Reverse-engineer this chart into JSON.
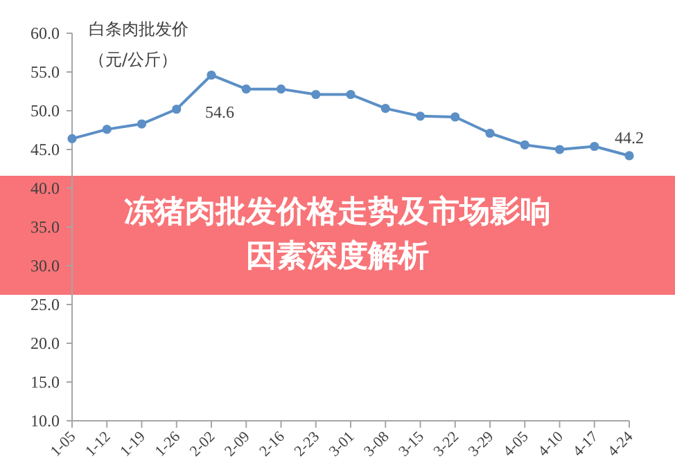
{
  "chart_data": {
    "type": "line",
    "ylabel": "白条肉批发价（元/公斤）",
    "categories": [
      "1-05",
      "1-12",
      "1-19",
      "1-26",
      "2-02",
      "2-09",
      "2-16",
      "2-23",
      "3-01",
      "3-08",
      "3-15",
      "3-22",
      "3-29",
      "4-05",
      "4-10",
      "4-17",
      "4-24"
    ],
    "series": [
      {
        "color": "#5b8fc6",
        "values": [
          46.4,
          47.6,
          48.3,
          50.2,
          54.6,
          52.8,
          52.8,
          52.1,
          52.1,
          50.3,
          49.3,
          49.2,
          47.1,
          45.6,
          45.0,
          45.4,
          44.2
        ],
        "value_labels": [
          null,
          null,
          null,
          null,
          "54.6",
          null,
          null,
          null,
          null,
          null,
          null,
          null,
          null,
          null,
          null,
          null,
          "44.2"
        ]
      }
    ],
    "ylim": [
      10,
      60
    ],
    "yticks": [
      {
        "value": 10,
        "label": "10.0"
      },
      {
        "value": 15,
        "label": "15.0"
      },
      {
        "value": 20,
        "label": "20.0"
      },
      {
        "value": 25,
        "label": "25.0"
      },
      {
        "value": 30,
        "label": "30.0"
      },
      {
        "value": 35,
        "label": "35.0"
      },
      {
        "value": 40,
        "label": "40.0"
      },
      {
        "value": 45,
        "label": "45.0"
      },
      {
        "value": 50,
        "label": "50.0"
      },
      {
        "value": 55,
        "label": "55.0"
      },
      {
        "value": 60,
        "label": "60.0"
      }
    ],
    "marker": "circle",
    "line_style": "solid",
    "annotations": [
      "冻猪肉批发价格走势及市场影响因素深度解析"
    ]
  }
}
